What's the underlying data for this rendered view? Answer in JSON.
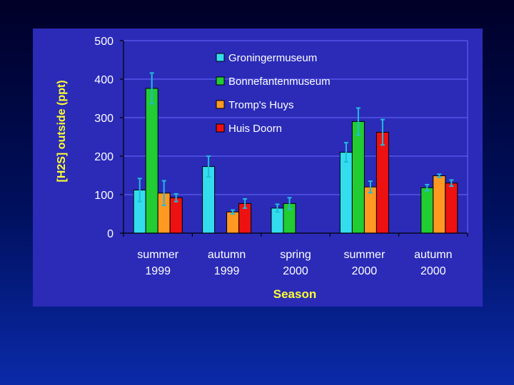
{
  "chart_data": {
    "type": "bar",
    "categories": [
      [
        "summer",
        "1999"
      ],
      [
        "autumn",
        "1999"
      ],
      [
        "spring",
        "2000"
      ],
      [
        "summer",
        "2000"
      ],
      [
        "autumn",
        "2000"
      ]
    ],
    "series": [
      {
        "name": "Groningermuseum",
        "color": "#33ddee",
        "values": [
          112,
          173,
          65,
          210,
          null
        ],
        "errors": [
          30,
          27,
          10,
          25,
          null
        ]
      },
      {
        "name": "Bonnefantenmuseum",
        "color": "#22cc33",
        "values": [
          376,
          null,
          77,
          290,
          118
        ],
        "errors": [
          40,
          null,
          15,
          35,
          8
        ]
      },
      {
        "name": "Tromp's Huys",
        "color": "#ff9922",
        "values": [
          104,
          55,
          null,
          120,
          149
        ],
        "errors": [
          32,
          5,
          null,
          15,
          4
        ]
      },
      {
        "name": "Huis Doorn",
        "color": "#ee1111",
        "values": [
          92,
          77,
          null,
          262,
          130
        ],
        "errors": [
          10,
          12,
          null,
          33,
          8
        ]
      }
    ],
    "xlabel": "Season",
    "ylabel": "[H2S] outside (ppt)",
    "ylim": [
      0,
      500
    ],
    "yticks": [
      0,
      100,
      200,
      300,
      400,
      500
    ],
    "grid": true,
    "legend_position": "top-center",
    "colors": {
      "plot_background": "#2b2bb8",
      "gridline": "#6a6aff",
      "label_yellow": "#ffff33",
      "tick_text": "#ffffff",
      "error_bar": "#22bbdd"
    }
  }
}
